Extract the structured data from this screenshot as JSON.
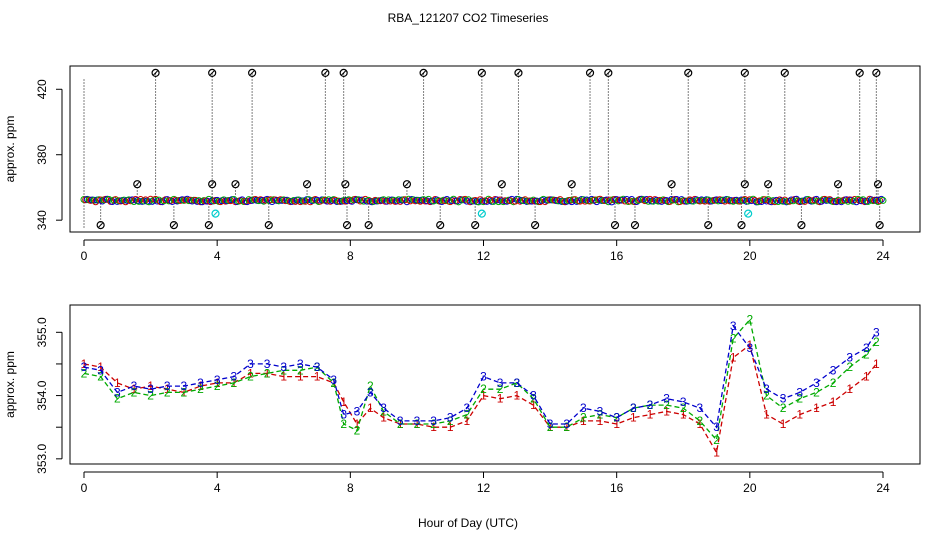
{
  "title": "RBA_121207  CO2 Timeseries",
  "xlabel": "Hour of Day (UTC)",
  "colors": {
    "series1": "#cc0000",
    "series2": "#00aa00",
    "series3": "#0000cc",
    "cyan": "#00cccc",
    "black": "#000000"
  },
  "chart_data": [
    {
      "type": "scatter",
      "panel": "top",
      "ylabel": "approx. ppm",
      "xlim": [
        0,
        24
      ],
      "ylim": [
        334,
        433
      ],
      "xticks": [
        0,
        4,
        8,
        12,
        16,
        20,
        24
      ],
      "yticks": [
        340,
        380,
        420
      ],
      "baseline": 352,
      "series": [
        {
          "symbol": "o",
          "color": "#000000",
          "points": [
            [
              2.15,
              430
            ],
            [
              3.85,
              430
            ],
            [
              5.05,
              430
            ],
            [
              7.25,
              430
            ],
            [
              7.8,
              430
            ],
            [
              10.2,
              430
            ],
            [
              11.95,
              430
            ],
            [
              13.05,
              430
            ],
            [
              15.2,
              430
            ],
            [
              15.75,
              430
            ],
            [
              18.15,
              430
            ],
            [
              19.85,
              430
            ],
            [
              21.05,
              430
            ],
            [
              23.3,
              430
            ],
            [
              23.8,
              430
            ],
            [
              1.6,
              362
            ],
            [
              3.85,
              362
            ],
            [
              4.55,
              362
            ],
            [
              6.7,
              362
            ],
            [
              7.85,
              362
            ],
            [
              9.7,
              362
            ],
            [
              12.55,
              362
            ],
            [
              14.65,
              362
            ],
            [
              17.65,
              362
            ],
            [
              19.85,
              362
            ],
            [
              20.55,
              362
            ],
            [
              22.65,
              362
            ],
            [
              23.85,
              362
            ],
            [
              0.5,
              337
            ],
            [
              2.7,
              337
            ],
            [
              3.75,
              337
            ],
            [
              5.55,
              337
            ],
            [
              7.9,
              337
            ],
            [
              8.55,
              337
            ],
            [
              10.7,
              337
            ],
            [
              11.75,
              337
            ],
            [
              13.55,
              337
            ],
            [
              15.95,
              337
            ],
            [
              16.55,
              337
            ],
            [
              18.75,
              337
            ],
            [
              19.75,
              337
            ],
            [
              21.55,
              337
            ],
            [
              23.9,
              337
            ]
          ]
        },
        {
          "symbol": "o",
          "color": "#00cccc",
          "points": [
            [
              3.95,
              344
            ],
            [
              11.95,
              344
            ],
            [
              19.95,
              344
            ]
          ]
        }
      ]
    },
    {
      "type": "line",
      "panel": "bottom",
      "ylabel": "approx. ppm",
      "xlim": [
        0,
        24
      ],
      "ylim": [
        352.95,
        355.4
      ],
      "xticks": [
        0,
        4,
        8,
        12,
        16,
        20,
        24
      ],
      "yticks": [
        353.0,
        353.5,
        354.0,
        354.5,
        355.0
      ],
      "ytick_labels": [
        "353.0",
        "",
        "354.0",
        "",
        "355.0"
      ],
      "x": [
        0.0,
        0.5,
        1.0,
        1.5,
        2.0,
        2.5,
        3.0,
        3.5,
        4.0,
        4.5,
        5.0,
        5.5,
        6.0,
        6.5,
        7.0,
        7.5,
        7.8,
        8.2,
        8.6,
        9.0,
        9.5,
        10.0,
        10.5,
        11.0,
        11.5,
        12.0,
        12.5,
        13.0,
        13.5,
        14.0,
        14.5,
        15.0,
        15.5,
        16.0,
        16.5,
        17.0,
        17.5,
        18.0,
        18.5,
        19.0,
        19.5,
        20.0,
        20.5,
        21.0,
        21.5,
        22.0,
        22.5,
        23.0,
        23.5,
        23.8
      ],
      "series": [
        {
          "name": "1",
          "color": "#cc0000",
          "values": [
            354.5,
            354.45,
            354.2,
            354.1,
            354.15,
            354.1,
            354.05,
            354.15,
            354.2,
            354.2,
            354.35,
            354.35,
            354.3,
            354.3,
            354.3,
            354.2,
            353.9,
            353.55,
            353.8,
            353.65,
            353.55,
            353.55,
            353.5,
            353.5,
            353.6,
            354.0,
            353.95,
            354.0,
            353.85,
            353.5,
            353.5,
            353.6,
            353.6,
            353.55,
            353.65,
            353.7,
            353.75,
            353.7,
            353.55,
            353.1,
            354.6,
            354.8,
            353.7,
            353.55,
            353.7,
            353.8,
            353.9,
            354.1,
            354.3,
            354.5
          ]
        },
        {
          "name": "2",
          "color": "#00aa00",
          "values": [
            354.35,
            354.3,
            353.95,
            354.05,
            354.0,
            354.05,
            354.05,
            354.1,
            354.15,
            354.2,
            354.3,
            354.35,
            354.4,
            354.4,
            354.45,
            354.2,
            353.55,
            353.45,
            354.15,
            353.75,
            353.55,
            353.55,
            353.55,
            353.6,
            353.7,
            354.1,
            354.1,
            354.2,
            353.95,
            353.5,
            353.5,
            353.65,
            353.7,
            353.65,
            353.8,
            353.85,
            353.85,
            353.8,
            353.6,
            353.3,
            354.9,
            355.2,
            354.0,
            353.8,
            353.95,
            354.05,
            354.2,
            354.45,
            354.65,
            354.85
          ]
        },
        {
          "name": "3",
          "color": "#0000cc",
          "values": [
            354.45,
            354.4,
            354.05,
            354.15,
            354.1,
            354.15,
            354.15,
            354.2,
            354.25,
            354.3,
            354.5,
            354.5,
            354.45,
            354.5,
            354.45,
            354.25,
            353.7,
            353.75,
            354.05,
            353.8,
            353.6,
            353.6,
            353.6,
            353.65,
            353.8,
            354.3,
            354.2,
            354.2,
            354.0,
            353.55,
            353.55,
            353.8,
            353.75,
            353.65,
            353.8,
            353.85,
            353.95,
            353.9,
            353.8,
            353.5,
            355.1,
            354.75,
            354.1,
            353.95,
            354.05,
            354.2,
            354.4,
            354.6,
            354.75,
            355.0
          ]
        }
      ]
    }
  ]
}
